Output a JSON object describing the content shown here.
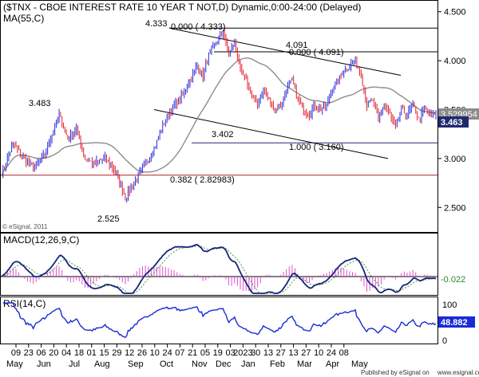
{
  "chart_data": [
    {
      "type": "candlestick",
      "title": "($TNX - CBOE INTEREST RATE 10 YEAR T NOT,D) Dynamic,0:00-24:00 (Delayed)",
      "indicator": "MA(55,C)",
      "watermark": "© eSignal, 2011",
      "ylim": [
        2.25,
        4.62
      ],
      "y_ticks": [
        2.5,
        3.0,
        3.5,
        4.0,
        4.5
      ],
      "y_tick_labels": [
        "2.500",
        "3.000",
        "3.500",
        "4.000",
        "4.500"
      ],
      "x_tick_labels": [
        "09",
        "23",
        "06",
        "20",
        "04",
        "18",
        "01",
        "15",
        "29",
        "12",
        "26",
        "10",
        "24",
        "07",
        "21",
        "05",
        "19",
        "03",
        "2023",
        "30",
        "13",
        "27",
        "13",
        "27",
        "10",
        "24",
        "08"
      ],
      "month_labels": [
        "May",
        "Jun",
        "Jul",
        "Aug",
        "Sep",
        "Oct",
        "Nov",
        "Dec",
        "Jan",
        "Feb",
        "Mar",
        "Apr",
        "May"
      ],
      "annotations": [
        {
          "text": "3.483",
          "y": 3.483
        },
        {
          "text": "2.525",
          "y": 2.525
        },
        {
          "text": "4.333",
          "y": 4.333
        },
        {
          "text": "0.000 ( 4.333)",
          "y": 4.333
        },
        {
          "text": "4.091",
          "y": 4.091
        },
        {
          "text": "0.000 ( 4.091)",
          "y": 4.091
        },
        {
          "text": "3.402",
          "y": 3.402
        },
        {
          "text": "1.000 ( 3.160)",
          "y": 3.16
        },
        {
          "text": "0.382 ( 2.82983)",
          "y": 2.82983
        }
      ],
      "last_price": "3.463",
      "ma_value": "3.529954",
      "colors": {
        "up": "#2b2bd6",
        "down": "#e0202b",
        "ma": "#8c8c8c",
        "fib": "#b02020",
        "level": "#1f2a6e"
      },
      "ohlc_anchor_path": [
        [
          0,
          2.85
        ],
        [
          8,
          3.15
        ],
        [
          15,
          3.02
        ],
        [
          22,
          2.9
        ],
        [
          30,
          3.05
        ],
        [
          40,
          3.45
        ],
        [
          46,
          3.2
        ],
        [
          52,
          3.3
        ],
        [
          58,
          3.0
        ],
        [
          64,
          2.95
        ],
        [
          72,
          3.0
        ],
        [
          80,
          2.85
        ],
        [
          86,
          2.6
        ],
        [
          92,
          2.75
        ],
        [
          98,
          2.9
        ],
        [
          106,
          3.1
        ],
        [
          114,
          3.4
        ],
        [
          120,
          3.55
        ],
        [
          126,
          3.65
        ],
        [
          130,
          3.78
        ],
        [
          136,
          3.95
        ],
        [
          140,
          3.85
        ],
        [
          144,
          4.05
        ],
        [
          150,
          4.2
        ],
        [
          154,
          4.3
        ],
        [
          158,
          4.05
        ],
        [
          162,
          4.2
        ],
        [
          166,
          3.9
        ],
        [
          170,
          3.8
        ],
        [
          174,
          3.65
        ],
        [
          178,
          3.55
        ],
        [
          182,
          3.7
        ],
        [
          186,
          3.6
        ],
        [
          190,
          3.5
        ],
        [
          194,
          3.55
        ],
        [
          198,
          3.7
        ],
        [
          202,
          3.8
        ],
        [
          206,
          3.6
        ],
        [
          210,
          3.5
        ],
        [
          214,
          3.45
        ],
        [
          218,
          3.55
        ],
        [
          222,
          3.5
        ],
        [
          226,
          3.55
        ],
        [
          230,
          3.7
        ],
        [
          234,
          3.8
        ],
        [
          238,
          3.9
        ],
        [
          242,
          3.95
        ],
        [
          246,
          4.0
        ],
        [
          250,
          3.85
        ],
        [
          254,
          3.55
        ],
        [
          258,
          3.6
        ],
        [
          262,
          3.4
        ],
        [
          266,
          3.55
        ],
        [
          270,
          3.45
        ],
        [
          274,
          3.3
        ],
        [
          278,
          3.5
        ],
        [
          282,
          3.45
        ],
        [
          286,
          3.55
        ],
        [
          290,
          3.4
        ],
        [
          294,
          3.5
        ],
        [
          298,
          3.45
        ],
        [
          302,
          3.463
        ]
      ]
    },
    {
      "type": "line",
      "title": "MACD(12,26,9,C)",
      "ylim": [
        -1,
        1
      ],
      "last_value": "-0.022"
    },
    {
      "type": "line",
      "title": "RSI(14,C)",
      "y_ticks": [
        0,
        100
      ],
      "y_tick_labels": [
        "0",
        "100"
      ],
      "last_value": "48.882"
    }
  ],
  "footer": {
    "published": "Published by eSignal on",
    "site": "www.esignal.com"
  }
}
